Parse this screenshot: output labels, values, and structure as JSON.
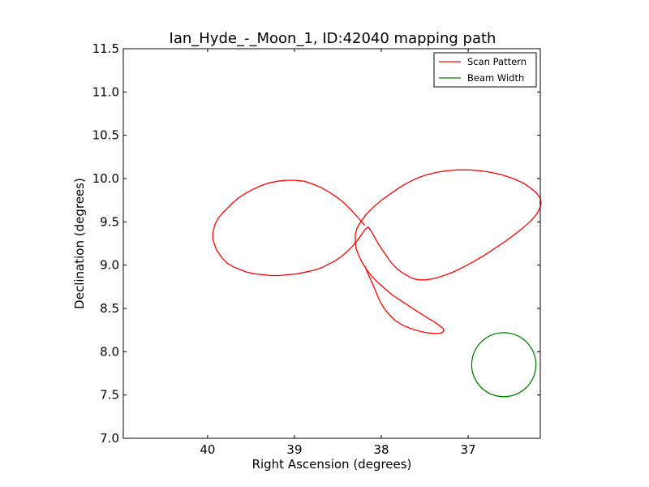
{
  "chart_data": {
    "type": "line",
    "title": "Ian_Hyde_-_Moon_1, ID:42040 mapping path",
    "xlabel": "Right Ascension (degrees)",
    "ylabel": "Declination (degrees)",
    "x_reversed": true,
    "xlim": [
      40.97,
      36.17
    ],
    "ylim": [
      7.0,
      11.5
    ],
    "x_ticks": [
      40,
      39,
      38,
      37
    ],
    "x_tick_labels": [
      "40",
      "39",
      "38",
      "37"
    ],
    "y_ticks": [
      7.0,
      7.5,
      8.0,
      8.5,
      9.0,
      9.5,
      10.0,
      10.5,
      11.0,
      11.5
    ],
    "y_tick_labels": [
      "7.0",
      "7.5",
      "8.0",
      "8.5",
      "9.0",
      "9.5",
      "10.0",
      "10.5",
      "11.0",
      "11.5"
    ],
    "grid": false,
    "legend_position": "top-right",
    "series": [
      {
        "name": "Scan Pattern",
        "color": "#ff0000",
        "x": [
          38.19,
          38.27,
          38.35,
          38.43,
          38.52,
          38.61,
          38.7,
          38.8,
          38.89,
          38.99,
          39.09,
          39.19,
          39.29,
          39.38,
          39.47,
          39.56,
          39.64,
          39.71,
          39.77,
          39.83,
          39.88,
          39.91,
          39.93,
          39.94,
          39.94,
          39.92,
          39.9,
          39.86,
          39.82,
          39.77,
          39.7,
          39.63,
          39.55,
          39.46,
          39.37,
          39.27,
          39.17,
          39.07,
          38.97,
          38.87,
          38.78,
          38.69,
          38.61,
          38.53,
          38.46,
          38.39,
          38.33,
          38.28,
          38.23,
          38.19,
          38.15,
          38.11,
          38.07,
          38.03,
          37.99,
          37.95,
          37.91,
          37.87,
          37.82,
          37.77,
          37.72,
          37.67,
          37.62,
          37.56,
          37.49,
          37.42,
          37.34,
          37.25,
          37.15,
          37.05,
          36.94,
          36.82,
          36.7,
          36.58,
          36.47,
          36.37,
          36.28,
          36.21,
          36.17,
          36.16,
          36.17,
          36.21,
          36.28,
          36.37,
          36.48,
          36.6,
          36.73,
          36.86,
          36.99,
          37.12,
          37.25,
          37.37,
          37.49,
          37.6,
          37.7,
          37.8,
          37.9,
          38.0,
          38.09,
          38.17,
          38.23,
          38.28,
          38.3,
          38.3,
          38.29,
          38.26,
          38.22,
          38.17,
          38.11,
          38.04,
          37.96,
          37.88,
          37.79,
          37.7,
          37.61,
          37.53,
          37.45,
          37.38,
          37.33,
          37.29,
          37.28,
          37.3,
          37.34,
          37.4,
          37.48,
          37.57,
          37.67,
          37.76,
          37.84,
          37.9,
          37.96,
          38.01,
          38.05,
          38.09,
          38.14,
          38.19
        ],
        "y": [
          9.46,
          9.55,
          9.64,
          9.72,
          9.79,
          9.85,
          9.9,
          9.94,
          9.97,
          9.98,
          9.98,
          9.97,
          9.95,
          9.92,
          9.88,
          9.83,
          9.78,
          9.72,
          9.66,
          9.6,
          9.54,
          9.48,
          9.42,
          9.36,
          9.3,
          9.24,
          9.18,
          9.12,
          9.07,
          9.02,
          8.98,
          8.95,
          8.92,
          8.9,
          8.89,
          8.88,
          8.88,
          8.89,
          8.9,
          8.92,
          8.94,
          8.97,
          9.01,
          9.05,
          9.1,
          9.16,
          9.22,
          9.28,
          9.35,
          9.41,
          9.44,
          9.38,
          9.31,
          9.24,
          9.18,
          9.12,
          9.06,
          9.01,
          8.96,
          8.92,
          8.89,
          8.86,
          8.84,
          8.83,
          8.83,
          8.84,
          8.86,
          8.89,
          8.93,
          8.98,
          9.04,
          9.11,
          9.19,
          9.27,
          9.35,
          9.43,
          9.51,
          9.59,
          9.67,
          9.72,
          9.77,
          9.83,
          9.89,
          9.95,
          10.0,
          10.04,
          10.07,
          10.09,
          10.1,
          10.1,
          10.09,
          10.07,
          10.04,
          10.0,
          9.95,
          9.89,
          9.82,
          9.75,
          9.67,
          9.59,
          9.51,
          9.43,
          9.35,
          9.27,
          9.19,
          9.11,
          9.03,
          8.95,
          8.87,
          8.8,
          8.73,
          8.66,
          8.6,
          8.54,
          8.48,
          8.43,
          8.38,
          8.34,
          8.3,
          8.27,
          8.24,
          8.22,
          8.21,
          8.21,
          8.22,
          8.24,
          8.27,
          8.31,
          8.36,
          8.42,
          8.49,
          8.57,
          8.66,
          8.76,
          8.87,
          8.99
        ]
      },
      {
        "name": "Beam Width",
        "color": "#008000",
        "shape": "circle",
        "center": [
          36.59,
          7.85
        ],
        "radius": 0.37
      }
    ]
  }
}
